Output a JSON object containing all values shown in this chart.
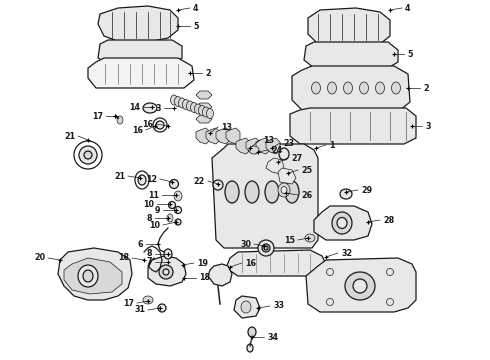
{
  "bg": "#f0f0f0",
  "fg": "#1a1a1a",
  "lw_main": 0.9,
  "lw_thin": 0.5,
  "label_fs": 5.8,
  "fig_w": 4.9,
  "fig_h": 3.6,
  "dpi": 100,
  "fill_light": "#e8e8e8",
  "fill_med": "#d8d8d8",
  "fill_dark": "#c0c0c0"
}
